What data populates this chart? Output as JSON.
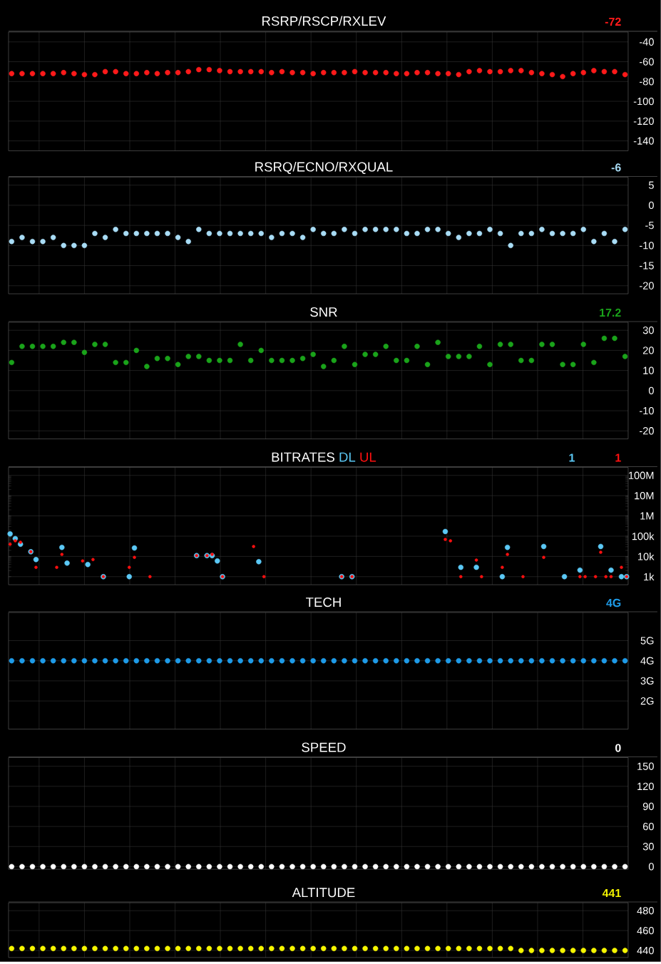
{
  "chart_data": [
    {
      "type": "scatter",
      "title": "RSRP/RSCP/RXLEV",
      "annotations": [
        "-72"
      ],
      "categories": [
        null,
        null,
        null,
        null,
        null,
        null,
        null,
        null,
        null,
        null,
        null,
        null,
        null,
        null,
        null,
        null,
        null,
        null,
        null,
        null,
        null,
        null,
        null,
        null,
        null,
        null,
        null,
        null,
        null,
        null,
        null,
        null,
        null,
        null,
        null,
        null,
        null,
        null,
        null,
        null,
        null,
        null,
        null,
        null,
        null,
        null,
        null,
        null,
        null,
        null,
        null,
        null,
        null,
        null,
        null,
        null,
        null,
        null,
        null,
        null
      ],
      "series": [
        {
          "color": "#ff1a1a",
          "values": [
            -72,
            -72,
            -72,
            -72,
            -72,
            -71,
            -72,
            -73,
            -73,
            -70,
            -70,
            -72,
            -72,
            -71,
            -72,
            -71,
            -71,
            -70,
            -68,
            -68,
            -69,
            -70,
            -70,
            -70,
            -70,
            -71,
            -70,
            -71,
            -71,
            -72,
            -71,
            -71,
            -71,
            -70,
            -71,
            -71,
            -71,
            -72,
            -72,
            -71,
            -71,
            -72,
            -72,
            -73,
            -70,
            -69,
            -70,
            -70,
            -69,
            -69,
            -71,
            -72,
            -73,
            -75,
            -72,
            -71,
            -69,
            -70,
            -70,
            -73
          ]
        }
      ],
      "ylim": [
        -150,
        -30
      ],
      "yticks": [
        -140,
        -120,
        -100,
        -80,
        -60,
        -40
      ],
      "grid": true,
      "marker": "circle",
      "tick_labels": "y"
    },
    {
      "type": "scatter",
      "title": "RSRQ/ECNO/RXQUAL",
      "annotations": [
        "-6"
      ],
      "categories": [
        null,
        null,
        null,
        null,
        null,
        null,
        null,
        null,
        null,
        null,
        null,
        null,
        null,
        null,
        null,
        null,
        null,
        null,
        null,
        null,
        null,
        null,
        null,
        null,
        null,
        null,
        null,
        null,
        null,
        null,
        null,
        null,
        null,
        null,
        null,
        null,
        null,
        null,
        null,
        null,
        null,
        null,
        null,
        null,
        null,
        null,
        null,
        null,
        null,
        null,
        null,
        null,
        null,
        null,
        null,
        null,
        null,
        null,
        null,
        null
      ],
      "series": [
        {
          "color": "#a8dcf5",
          "values": [
            -9,
            -8,
            -9,
            -9,
            -8,
            -10,
            -10,
            -10,
            -7,
            -8,
            -6,
            -7,
            -7,
            -7,
            -7,
            -7,
            -8,
            -9,
            -6,
            -7,
            -7,
            -7,
            -7,
            -7,
            -7,
            -8,
            -7,
            -7,
            -8,
            -6,
            -7,
            -7,
            -6,
            -7,
            -6,
            -6,
            -6,
            -6,
            -7,
            -7,
            -6,
            -6,
            -7,
            -8,
            -7,
            -7,
            -6,
            -7,
            -10,
            -7,
            -7,
            -6,
            -7,
            -7,
            -7,
            -6,
            -9,
            -7,
            -9,
            -6
          ]
        }
      ],
      "ylim": [
        -22,
        7
      ],
      "yticks": [
        -20,
        -15,
        -10,
        -5,
        0,
        5
      ],
      "grid": true,
      "marker": "circle",
      "tick_labels": "y"
    },
    {
      "type": "scatter",
      "title": "SNR",
      "annotations": [
        "17.2"
      ],
      "categories": [
        null,
        null,
        null,
        null,
        null,
        null,
        null,
        null,
        null,
        null,
        null,
        null,
        null,
        null,
        null,
        null,
        null,
        null,
        null,
        null,
        null,
        null,
        null,
        null,
        null,
        null,
        null,
        null,
        null,
        null,
        null,
        null,
        null,
        null,
        null,
        null,
        null,
        null,
        null,
        null,
        null,
        null,
        null,
        null,
        null,
        null,
        null,
        null,
        null,
        null,
        null,
        null,
        null,
        null,
        null,
        null,
        null,
        null,
        null,
        null
      ],
      "series": [
        {
          "color": "#1aa31a",
          "values": [
            14,
            22,
            22,
            22,
            22,
            24,
            24,
            19,
            23,
            23,
            14,
            14,
            20,
            12,
            16,
            16,
            13,
            17,
            17,
            15,
            15,
            15,
            23,
            15,
            20,
            15,
            15,
            15,
            16,
            18,
            12,
            15,
            22,
            13,
            18,
            18,
            22,
            15,
            15,
            22,
            13,
            24,
            17,
            17,
            17,
            22,
            13,
            23,
            23,
            15,
            15,
            23,
            23,
            13,
            13,
            23,
            14,
            26,
            26,
            17
          ]
        }
      ],
      "ylim": [
        -24,
        34
      ],
      "yticks": [
        -20,
        -10,
        0,
        10,
        20,
        30
      ],
      "grid": true,
      "marker": "circle",
      "tick_labels": "y"
    },
    {
      "type": "scatter",
      "title": "BITRATES",
      "annotations": [
        "1",
        "1"
      ],
      "categories": [
        null,
        null,
        null,
        null,
        null,
        null,
        null,
        null,
        null,
        null,
        null,
        null,
        null,
        null,
        null,
        null,
        null,
        null,
        null,
        null,
        null,
        null,
        null,
        null,
        null,
        null,
        null,
        null,
        null,
        null,
        null,
        null,
        null,
        null,
        null,
        null,
        null,
        null,
        null,
        null,
        null,
        null,
        null,
        null,
        null,
        null,
        null,
        null,
        null,
        null,
        null,
        null,
        null,
        null,
        null,
        null,
        null,
        null,
        null,
        null,
        null,
        null,
        null,
        null,
        null,
        null,
        null,
        null,
        null,
        null,
        null,
        null,
        null,
        null,
        null,
        null,
        null,
        null,
        null,
        null,
        null,
        null,
        null,
        null,
        null,
        null,
        null,
        null,
        null,
        null,
        null,
        null,
        null,
        null,
        null,
        null,
        null,
        null,
        null,
        null,
        null,
        null,
        null,
        null,
        null,
        null,
        null,
        null,
        null,
        null,
        null,
        null,
        null,
        null,
        null,
        null,
        null,
        null,
        null,
        null
      ],
      "series": [
        {
          "name": "DL",
          "color": "#5bc8f5",
          "values": [
            130000,
            76000,
            40000,
            null,
            17000,
            7000,
            null,
            null,
            null,
            null,
            28000,
            4700,
            null,
            null,
            null,
            4000,
            null,
            null,
            1000,
            null,
            null,
            null,
            null,
            1000,
            26000,
            null,
            null,
            null,
            null,
            null,
            null,
            null,
            null,
            null,
            null,
            null,
            11000,
            null,
            11000,
            11000,
            6000,
            1000,
            null,
            null,
            null,
            null,
            null,
            null,
            5500,
            null,
            null,
            null,
            null,
            null,
            null,
            null,
            null,
            null,
            null,
            null,
            null,
            null,
            null,
            null,
            1000,
            null,
            1000,
            null,
            null,
            null,
            null,
            null,
            null,
            null,
            null,
            null,
            null,
            null,
            null,
            null,
            null,
            null,
            null,
            null,
            170000,
            null,
            null,
            2900,
            null,
            null,
            2900,
            null,
            null,
            null,
            null,
            1000,
            28000,
            null,
            null,
            null,
            null,
            null,
            null,
            31000,
            null,
            null,
            null,
            1000,
            null,
            null,
            2100,
            null,
            null,
            null,
            31000,
            null,
            2100,
            null,
            1000,
            1000
          ]
        },
        {
          "name": "UL",
          "color": "#ff1010",
          "values": [
            40000,
            59000,
            50000,
            null,
            17000,
            2900,
            null,
            null,
            null,
            2900,
            12500,
            null,
            null,
            null,
            6000,
            null,
            7000,
            null,
            1000,
            null,
            null,
            null,
            null,
            2900,
            9000,
            null,
            null,
            1000,
            null,
            null,
            null,
            null,
            null,
            null,
            null,
            null,
            11000,
            null,
            11000,
            12500,
            null,
            1000,
            null,
            null,
            null,
            null,
            null,
            31000,
            null,
            1000,
            null,
            null,
            null,
            null,
            null,
            null,
            null,
            null,
            null,
            null,
            null,
            null,
            null,
            null,
            1000,
            null,
            1000,
            null,
            null,
            null,
            null,
            null,
            null,
            null,
            null,
            null,
            null,
            null,
            null,
            null,
            null,
            null,
            null,
            null,
            69000,
            59000,
            null,
            1000,
            null,
            null,
            6600,
            1000,
            null,
            null,
            null,
            2900,
            12500,
            null,
            null,
            1000,
            null,
            null,
            null,
            9000,
            null,
            null,
            null,
            null,
            null,
            null,
            1000,
            1000,
            null,
            1000,
            16000,
            1000,
            1000,
            null,
            2900,
            1000
          ]
        }
      ],
      "ylim": [
        400,
        250000000
      ],
      "yticks": [
        {
          "value": 1000,
          "label": "1k"
        },
        {
          "value": 10000,
          "label": "10k"
        },
        {
          "value": 100000,
          "label": "100k"
        },
        {
          "value": 1000000,
          "label": "1M"
        },
        {
          "value": 10000000,
          "label": "10M"
        },
        {
          "value": 100000000,
          "label": "100M"
        }
      ],
      "log": true,
      "grid": true,
      "marker": "circle",
      "tick_labels": "y"
    },
    {
      "type": "scatter",
      "title": "TECH",
      "annotations": [
        "4G"
      ],
      "categories": [
        null,
        null,
        null,
        null,
        null,
        null,
        null,
        null,
        null,
        null,
        null,
        null,
        null,
        null,
        null,
        null,
        null,
        null,
        null,
        null,
        null,
        null,
        null,
        null,
        null,
        null,
        null,
        null,
        null,
        null,
        null,
        null,
        null,
        null,
        null,
        null,
        null,
        null,
        null,
        null,
        null,
        null,
        null,
        null,
        null,
        null,
        null,
        null,
        null,
        null,
        null,
        null,
        null,
        null,
        null,
        null,
        null,
        null,
        null,
        null
      ],
      "series": [
        {
          "color": "#1e9be8",
          "values": [
            4,
            4,
            4,
            4,
            4,
            4,
            4,
            4,
            4,
            4,
            4,
            4,
            4,
            4,
            4,
            4,
            4,
            4,
            4,
            4,
            4,
            4,
            4,
            4,
            4,
            4,
            4,
            4,
            4,
            4,
            4,
            4,
            4,
            4,
            4,
            4,
            4,
            4,
            4,
            4,
            4,
            4,
            4,
            4,
            4,
            4,
            4,
            4,
            4,
            4,
            4,
            4,
            4,
            4,
            4,
            4,
            4,
            4,
            4,
            4
          ]
        }
      ],
      "ylim": [
        0.6,
        6.4
      ],
      "yticks": [
        {
          "value": 2,
          "label": "2G"
        },
        {
          "value": 3,
          "label": "3G"
        },
        {
          "value": 4,
          "label": "4G"
        },
        {
          "value": 5,
          "label": "5G"
        }
      ],
      "grid": true,
      "marker": "circle",
      "tick_labels": "y"
    },
    {
      "type": "scatter",
      "title": "SPEED",
      "annotations": [
        "0"
      ],
      "categories": [
        null,
        null,
        null,
        null,
        null,
        null,
        null,
        null,
        null,
        null,
        null,
        null,
        null,
        null,
        null,
        null,
        null,
        null,
        null,
        null,
        null,
        null,
        null,
        null,
        null,
        null,
        null,
        null,
        null,
        null,
        null,
        null,
        null,
        null,
        null,
        null,
        null,
        null,
        null,
        null,
        null,
        null,
        null,
        null,
        null,
        null,
        null,
        null,
        null,
        null,
        null,
        null,
        null,
        null,
        null,
        null,
        null,
        null,
        null,
        null
      ],
      "series": [
        {
          "color": "#ffffff",
          "values": [
            0,
            0,
            0,
            0,
            0,
            0,
            0,
            0,
            0,
            0,
            0,
            0,
            0,
            0,
            0,
            0,
            0,
            0,
            0,
            0,
            0,
            0,
            0,
            0,
            0,
            0,
            0,
            0,
            0,
            0,
            0,
            0,
            0,
            0,
            0,
            0,
            0,
            0,
            0,
            0,
            0,
            0,
            0,
            0,
            0,
            0,
            0,
            0,
            0,
            0,
            0,
            0,
            0,
            0,
            0,
            0,
            0,
            0,
            0,
            0
          ]
        }
      ],
      "ylim": [
        -4,
        163
      ],
      "yticks": [
        0,
        30,
        60,
        90,
        120,
        150
      ],
      "grid": true,
      "marker": "circle",
      "tick_labels": "y"
    },
    {
      "type": "scatter",
      "title": "ALTITUDE",
      "annotations": [
        "441"
      ],
      "categories": [
        null,
        null,
        null,
        null,
        null,
        null,
        null,
        null,
        null,
        null,
        null,
        null,
        null,
        null,
        null,
        null,
        null,
        null,
        null,
        null,
        null,
        null,
        null,
        null,
        null,
        null,
        null,
        null,
        null,
        null,
        null,
        null,
        null,
        null,
        null,
        null,
        null,
        null,
        null,
        null,
        null,
        null,
        null,
        null,
        null,
        null,
        null,
        null,
        null,
        null,
        null,
        null,
        null,
        null,
        null,
        null,
        null,
        null,
        null,
        null
      ],
      "series": [
        {
          "color": "#f5f500",
          "values": [
            442,
            442,
            442,
            442,
            442,
            442,
            442,
            442,
            442,
            442,
            442,
            442,
            442,
            442,
            442,
            442,
            442,
            442,
            442,
            442,
            442,
            442,
            442,
            442,
            442,
            442,
            442,
            442,
            442,
            442,
            442,
            442,
            442,
            442,
            442,
            442,
            442,
            442,
            442,
            442,
            442,
            442,
            442,
            442,
            442,
            442,
            442,
            442,
            442,
            440,
            440,
            440,
            440,
            440,
            440,
            440,
            440,
            440,
            440,
            440
          ]
        }
      ],
      "ylim": [
        433,
        488
      ],
      "yticks": [
        440,
        460,
        480
      ],
      "grid": true,
      "marker": "circle",
      "tick_labels": "y"
    }
  ]
}
